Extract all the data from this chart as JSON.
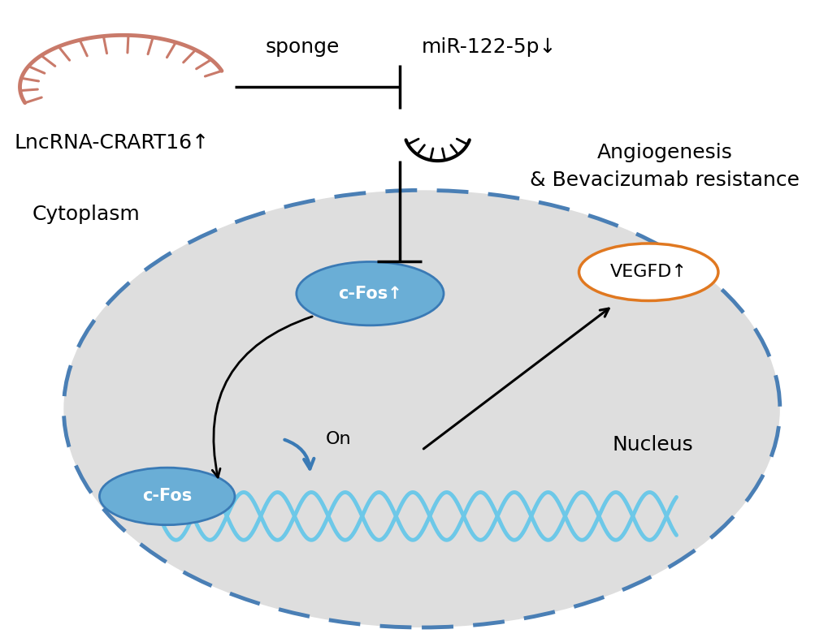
{
  "background_color": "#ffffff",
  "lncrna_color": "#c97a6a",
  "lncrna_label": "LncRNA-CRART16↑",
  "mir_label": "miR-122-5p↓",
  "sponge_label": "sponge",
  "cfos_label": "c-Fos↑",
  "cfos_nucleus_label": "c-Fos",
  "on_label": "On",
  "vegfd_label": "VEGFD↑",
  "angio_label": "Angiogenesis\n& Bevacizumab resistance",
  "cytoplasm_label": "Cytoplasm",
  "nucleus_label": "Nucleus",
  "nucleus_bg": "#dedede",
  "nucleus_border": "#4a7fb5",
  "cfos_ellipse_color": "#6aaed6",
  "cfos_ellipse_edge": "#3a7ab5",
  "dna_color": "#6dc8e8",
  "dna_rung_color": "#6dc8e8",
  "vegfd_border": "#e07820",
  "arrow_color": "#000000",
  "inhibit_line_color": "#000000",
  "font_size_label": 18,
  "font_size_cfos": 15,
  "font_size_on": 16,
  "font_size_nucleus": 18,
  "font_size_vegfd": 16
}
